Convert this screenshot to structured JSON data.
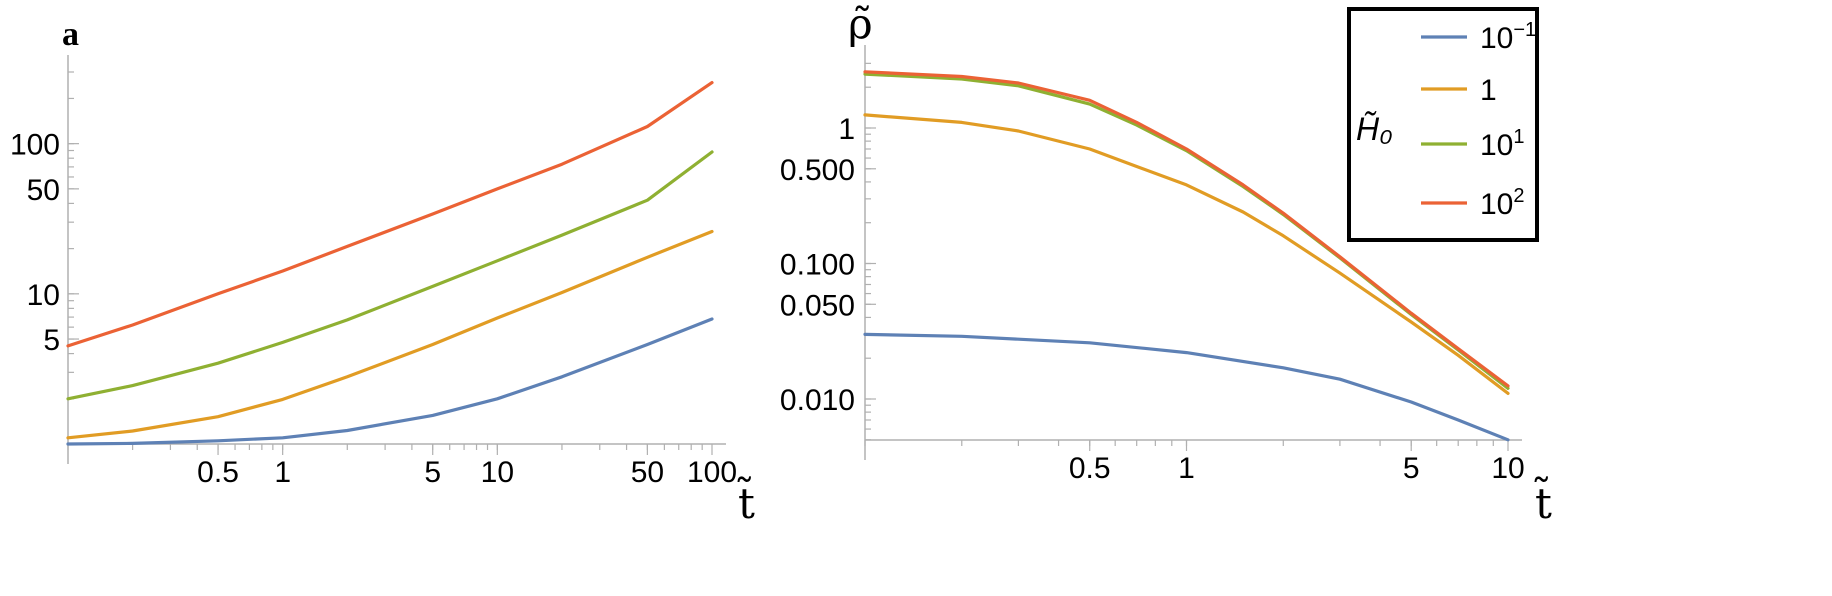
{
  "figure": {
    "panel_label": "a"
  },
  "colors": {
    "blue": "#5E81B5",
    "orange": "#E19C24",
    "green": "#8FB032",
    "red": "#EB6235",
    "axis": "#b0b0b0"
  },
  "legend": {
    "title": "H̃₀",
    "placement": "top-right of right panel",
    "entries": [
      {
        "base": "10",
        "exp": "−1",
        "color": "#5E81B5"
      },
      {
        "base": "1",
        "exp": "",
        "color": "#E19C24"
      },
      {
        "base": "10",
        "exp": "1",
        "color": "#8FB032"
      },
      {
        "base": "10",
        "exp": "2",
        "color": "#EB6235"
      }
    ]
  },
  "chart_data": [
    {
      "type": "line",
      "panel": "left",
      "xlabel": "t̃",
      "ylabel": "",
      "xscale": "log",
      "yscale": "log",
      "xlim": [
        0.1,
        100
      ],
      "ylim": [
        1,
        300
      ],
      "xticks": [
        "0.5",
        "1",
        "5",
        "10",
        "50",
        "100"
      ],
      "xtick_values": [
        0.5,
        1,
        5,
        10,
        50,
        100
      ],
      "yticks": [
        "5",
        "10",
        "50",
        "100"
      ],
      "ytick_values": [
        5,
        10,
        50,
        100
      ],
      "series": [
        {
          "color": "#5E81B5",
          "x": [
            0.1,
            0.2,
            0.5,
            1,
            2,
            5,
            10,
            20,
            50,
            100
          ],
          "y": [
            1.0,
            1.01,
            1.05,
            1.1,
            1.23,
            1.55,
            2.0,
            2.8,
            4.6,
            6.8
          ]
        },
        {
          "color": "#E19C24",
          "x": [
            0.1,
            0.2,
            0.5,
            1,
            2,
            5,
            10,
            20,
            50,
            100
          ],
          "y": [
            1.1,
            1.22,
            1.52,
            1.98,
            2.8,
            4.6,
            6.9,
            10.2,
            17.5,
            26.0
          ]
        },
        {
          "color": "#8FB032",
          "x": [
            0.1,
            0.2,
            0.5,
            1,
            2,
            5,
            10,
            20,
            50,
            100
          ],
          "y": [
            2.0,
            2.45,
            3.45,
            4.75,
            6.7,
            11.2,
            16.6,
            24.6,
            42.0,
            88.0
          ]
        },
        {
          "color": "#EB6235",
          "x": [
            0.1,
            0.2,
            0.5,
            1,
            2,
            5,
            10,
            20,
            50,
            100
          ],
          "y": [
            4.5,
            6.2,
            10.0,
            14.2,
            20.7,
            34.0,
            50.0,
            73.0,
            130.0,
            255.0
          ]
        }
      ]
    },
    {
      "type": "line",
      "panel": "right",
      "xlabel": "t̃",
      "ylabel": "ρ̃",
      "xscale": "log",
      "yscale": "log",
      "xlim": [
        0.1,
        10
      ],
      "ylim": [
        0.005,
        3
      ],
      "xticks": [
        "0.5",
        "1",
        "5",
        "10"
      ],
      "xtick_values": [
        0.5,
        1,
        5,
        10
      ],
      "yticks": [
        "0.010",
        "0.050",
        "0.100",
        "0.500",
        "1"
      ],
      "ytick_values": [
        0.01,
        0.05,
        0.1,
        0.5,
        1
      ],
      "series": [
        {
          "color": "#5E81B5",
          "x": [
            0.1,
            0.2,
            0.5,
            1,
            2,
            3,
            5,
            7,
            10
          ],
          "y": [
            0.03,
            0.029,
            0.026,
            0.022,
            0.017,
            0.014,
            0.0095,
            0.007,
            0.005
          ]
        },
        {
          "color": "#E19C24",
          "x": [
            0.1,
            0.2,
            0.3,
            0.5,
            0.7,
            1,
            1.5,
            2,
            3,
            5,
            7,
            10
          ],
          "y": [
            1.25,
            1.1,
            0.95,
            0.7,
            0.52,
            0.38,
            0.24,
            0.16,
            0.085,
            0.037,
            0.021,
            0.011
          ]
        },
        {
          "color": "#8FB032",
          "x": [
            0.1,
            0.2,
            0.3,
            0.5,
            0.7,
            1,
            1.5,
            2,
            3,
            5,
            7,
            10
          ],
          "y": [
            2.5,
            2.3,
            2.05,
            1.5,
            1.05,
            0.68,
            0.37,
            0.23,
            0.11,
            0.042,
            0.023,
            0.012
          ]
        },
        {
          "color": "#EB6235",
          "x": [
            0.1,
            0.2,
            0.3,
            0.5,
            0.7,
            1,
            1.5,
            2,
            3,
            5,
            7,
            10
          ],
          "y": [
            2.6,
            2.4,
            2.15,
            1.6,
            1.1,
            0.7,
            0.38,
            0.235,
            0.112,
            0.043,
            0.0235,
            0.0125
          ]
        }
      ]
    }
  ]
}
